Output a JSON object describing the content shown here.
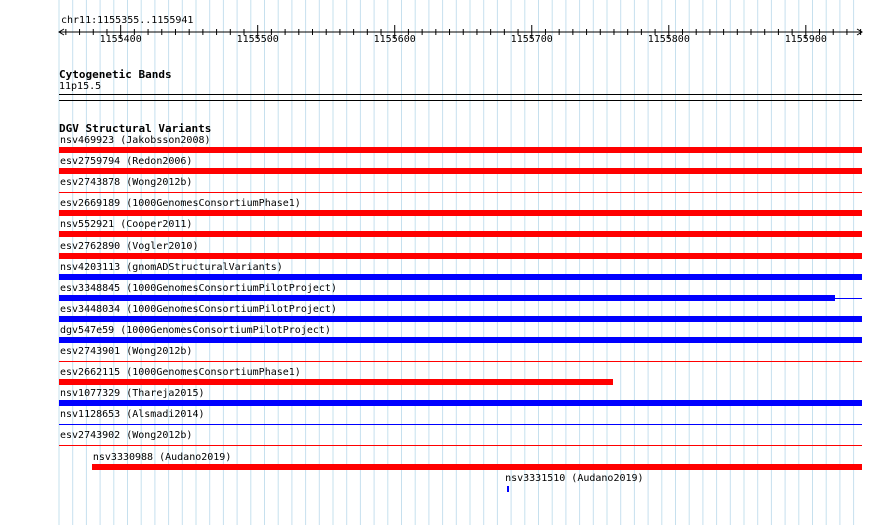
{
  "ruler": {
    "position_label": "chr11:1155355..1155941",
    "start": 1155355,
    "end": 1155941,
    "ticks": [
      "1155400",
      "1155500",
      "1155600",
      "1155700",
      "1155800",
      "1155900"
    ]
  },
  "cytoband": {
    "title": "Cytogenetic Bands",
    "band": "11p15.5"
  },
  "dgv": {
    "title": "DGV Structural Variants",
    "features": [
      {
        "id": "nsv469923",
        "study": "(Jakobsson2008)",
        "start": 1155355,
        "end": 1155941,
        "color": "#ff0000",
        "style": "thick"
      },
      {
        "id": "esv2759794",
        "study": "(Redon2006)",
        "start": 1155355,
        "end": 1155941,
        "color": "#ff0000",
        "style": "thick"
      },
      {
        "id": "esv2743878",
        "study": "(Wong2012b)",
        "start": 1155355,
        "end": 1155941,
        "color": "#ff0000",
        "style": "thin"
      },
      {
        "id": "esv2669189",
        "study": "(1000GenomesConsortiumPhase1)",
        "start": 1155355,
        "end": 1155941,
        "color": "#ff0000",
        "style": "thick"
      },
      {
        "id": "nsv552921",
        "study": "(Cooper2011)",
        "start": 1155355,
        "end": 1155941,
        "color": "#ff0000",
        "style": "thick"
      },
      {
        "id": "esv2762890",
        "study": "(Vogler2010)",
        "start": 1155355,
        "end": 1155941,
        "color": "#ff0000",
        "style": "thick"
      },
      {
        "id": "nsv4203113",
        "study": "(gnomADStructuralVariants)",
        "start": 1155355,
        "end": 1155941,
        "color": "#0000ff",
        "style": "thick"
      },
      {
        "id": "esv3348845",
        "study": "(1000GenomesConsortiumPilotProject)",
        "start": 1155355,
        "end": 1155921,
        "color": "#0000ff",
        "style": "thick"
      },
      {
        "id": "esv3448034",
        "study": "(1000GenomesConsortiumPilotProject)",
        "start": 1155355,
        "end": 1155941,
        "color": "#0000ff",
        "style": "thick"
      },
      {
        "id": "dgv547e59",
        "study": "(1000GenomesConsortiumPilotProject)",
        "start": 1155355,
        "end": 1155941,
        "color": "#0000ff",
        "style": "thick"
      },
      {
        "id": "esv2743901",
        "study": "(Wong2012b)",
        "start": 1155355,
        "end": 1155941,
        "color": "#ff0000",
        "style": "thin"
      },
      {
        "id": "esv2662115",
        "study": "(1000GenomesConsortiumPhase1)",
        "start": 1155355,
        "end": 1155759,
        "color": "#ff0000",
        "style": "thick"
      },
      {
        "id": "nsv1077329",
        "study": "(Thareja2015)",
        "start": 1155355,
        "end": 1155941,
        "color": "#0000ff",
        "style": "thick"
      },
      {
        "id": "nsv1128653",
        "study": "(Alsmadi2014)",
        "start": 1155355,
        "end": 1155941,
        "color": "#0000ff",
        "style": "thin"
      },
      {
        "id": "esv2743902",
        "study": "(Wong2012b)",
        "start": 1155355,
        "end": 1155941,
        "color": "#ff0000",
        "style": "thin"
      },
      {
        "id": "nsv3330988",
        "study": "(Audano2019)",
        "start": 1155379,
        "end": 1155941,
        "color": "#ff0000",
        "style": "thick"
      },
      {
        "id": "nsv3331510",
        "study": "(Audano2019)",
        "start": 1155682,
        "end": 1155683,
        "color": "#0000ff",
        "style": "tick"
      }
    ]
  }
}
